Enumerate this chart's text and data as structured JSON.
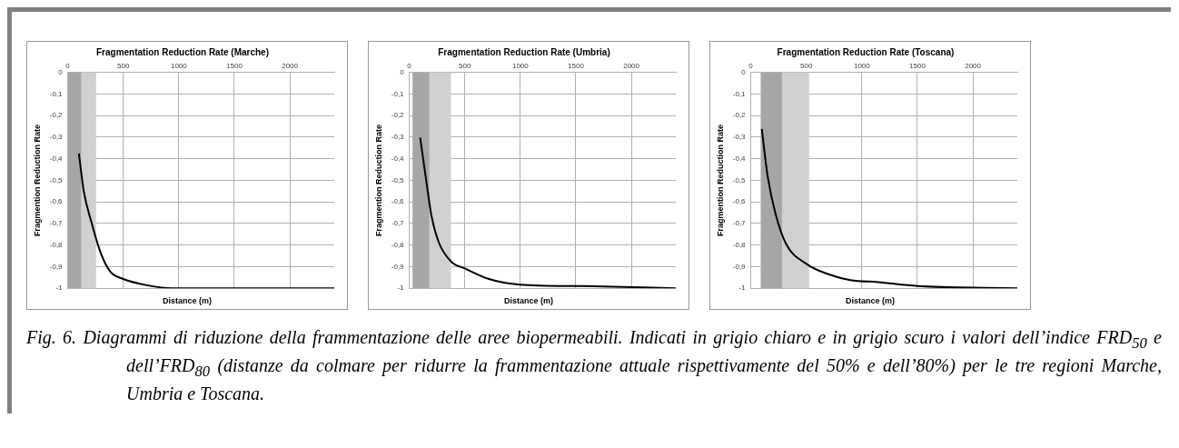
{
  "chart_data": [
    {
      "type": "line",
      "title": "Fragmentation Reduction Rate (Marche)",
      "xlabel": "Distance (m)",
      "ylabel": "Fragmention Reduction Rate",
      "xlim": [
        0,
        2400
      ],
      "xticks": [
        0,
        500,
        1000,
        1500,
        2000
      ],
      "ylim": [
        -1,
        0
      ],
      "yticks": [
        {
          "value": -1,
          "label": "-1"
        },
        {
          "value": -0.9,
          "label": "-0,9"
        },
        {
          "value": -0.8,
          "label": "-0,8"
        },
        {
          "value": -0.7,
          "label": "-0,7"
        },
        {
          "value": -0.6,
          "label": "-0,6"
        },
        {
          "value": -0.5,
          "label": "-0,5"
        },
        {
          "value": -0.4,
          "label": "-0,4"
        },
        {
          "value": -0.3,
          "label": "-0,3"
        },
        {
          "value": -0.2,
          "label": "-0,2"
        },
        {
          "value": -0.1,
          "label": "-0,1"
        },
        {
          "value": 0,
          "label": "0"
        }
      ],
      "grid": true,
      "legend": false,
      "marker": "none",
      "line_style": "solid",
      "bands": [
        {
          "axis": "x",
          "from": 0,
          "to": 255,
          "color": "#d0d0d0"
        },
        {
          "axis": "x",
          "from": 0,
          "to": 120,
          "color": "#a6a6a6"
        }
      ],
      "series": [
        {
          "color": "#000000",
          "x": [
            100,
            145,
            214,
            297,
            381,
            500,
            714,
            936,
            1500,
            2400
          ],
          "values": [
            -0.376,
            -0.553,
            -0.695,
            -0.837,
            -0.922,
            -0.957,
            -0.986,
            -1,
            -1,
            -1
          ]
        }
      ],
      "annotations": [
        "Fig. 6.  Diagrammi di riduzione della frammentazione delle aree biopermeabili. Indicati in grigio chiaro e in grigio scuro i valori dell’indice FRD$_{50}$ e dell’FRD$_{80}$ (distanze da colmare per ridurre la frammentazione attuale rispettivamente del 50% e dell’80%) per le tre regioni Marche, Umbria e Toscana."
      ]
    },
    {
      "type": "line",
      "title": "Fragmentation Reduction Rate (Umbria)",
      "xlabel": "Distance (m)",
      "ylabel": "Fragmention Reduction Rate",
      "xlim": [
        0,
        2400
      ],
      "xticks": [
        0,
        500,
        1000,
        1500,
        2000
      ],
      "ylim": [
        -1,
        0
      ],
      "yticks": [
        {
          "value": -1,
          "label": "-1"
        },
        {
          "value": -0.9,
          "label": "-0,9"
        },
        {
          "value": -0.8,
          "label": "-0,8"
        },
        {
          "value": -0.7,
          "label": "-0,7"
        },
        {
          "value": -0.6,
          "label": "-0,6"
        },
        {
          "value": -0.5,
          "label": "-0,5"
        },
        {
          "value": -0.4,
          "label": "-0,4"
        },
        {
          "value": -0.3,
          "label": "-0,3"
        },
        {
          "value": -0.2,
          "label": "-0,2"
        },
        {
          "value": -0.1,
          "label": "-0,1"
        },
        {
          "value": 0,
          "label": "0"
        }
      ],
      "grid": true,
      "legend": false,
      "marker": "none",
      "line_style": "solid",
      "bands": [
        {
          "axis": "x",
          "from": 30,
          "to": 375,
          "color": "#d0d0d0"
        },
        {
          "axis": "x",
          "from": 30,
          "to": 180,
          "color": "#a6a6a6"
        }
      ],
      "series": [
        {
          "color": "#000000",
          "x": [
            98,
            159,
            201,
            271,
            382,
            500,
            717,
            996,
            1554,
            2400
          ],
          "values": [
            -0.302,
            -0.525,
            -0.667,
            -0.794,
            -0.879,
            -0.908,
            -0.957,
            -0.983,
            -0.99,
            -1
          ]
        }
      ]
    },
    {
      "type": "line",
      "title": "Fragmentation Reduction Rate (Toscana)",
      "xlabel": "Distance (m)",
      "ylabel": "Fragmention Reduction Rate",
      "xlim": [
        0,
        2400
      ],
      "xticks": [
        0,
        500,
        1000,
        1500,
        2000
      ],
      "ylim": [
        -1,
        0
      ],
      "yticks": [
        {
          "value": -1,
          "label": "-1"
        },
        {
          "value": -0.9,
          "label": "-0,9"
        },
        {
          "value": -0.8,
          "label": "-0,8"
        },
        {
          "value": -0.7,
          "label": "-0,7"
        },
        {
          "value": -0.6,
          "label": "-0,6"
        },
        {
          "value": -0.5,
          "label": "-0,5"
        },
        {
          "value": -0.4,
          "label": "-0,4"
        },
        {
          "value": -0.3,
          "label": "-0,3"
        },
        {
          "value": -0.2,
          "label": "-0,2"
        },
        {
          "value": -0.1,
          "label": "-0,1"
        },
        {
          "value": 0,
          "label": "0"
        }
      ],
      "grid": true,
      "legend": false,
      "marker": "none",
      "line_style": "solid",
      "bands": [
        {
          "axis": "x",
          "from": 90,
          "to": 525,
          "color": "#d0d0d0"
        },
        {
          "axis": "x",
          "from": 90,
          "to": 280,
          "color": "#a6a6a6"
        }
      ],
      "series": [
        {
          "color": "#000000",
          "x": [
            99,
            152,
            221,
            317,
            500,
            704,
            897,
            1146,
            1504,
            2400
          ],
          "values": [
            -0.262,
            -0.482,
            -0.652,
            -0.794,
            -0.887,
            -0.936,
            -0.962,
            -0.972,
            -0.99,
            -1
          ]
        }
      ]
    }
  ]
}
